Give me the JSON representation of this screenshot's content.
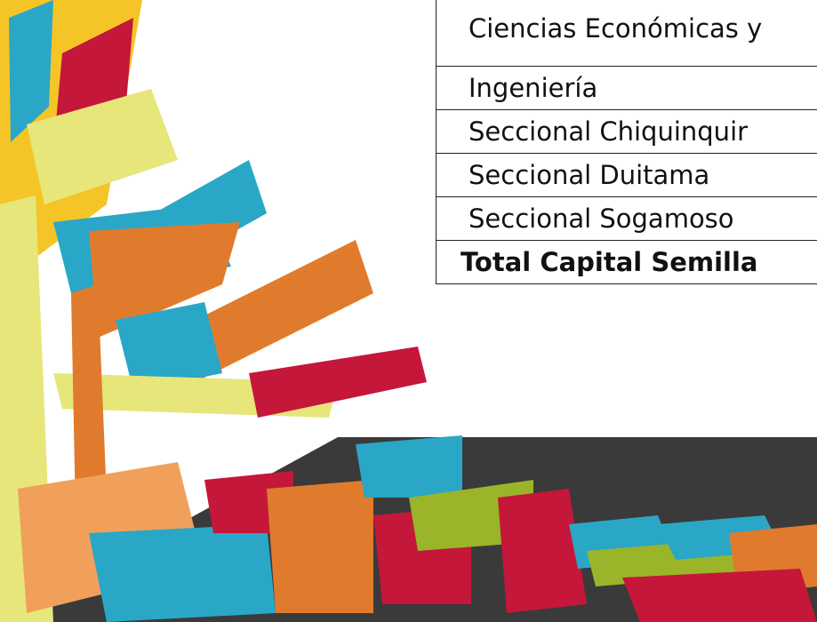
{
  "table": {
    "rows": [
      "Ciencias Económicas y",
      "Ingeniería",
      "Seccional Chiquinquir",
      "Seccional Duitama",
      "Seccional Sogamoso",
      "Total Capital Semilla"
    ]
  }
}
